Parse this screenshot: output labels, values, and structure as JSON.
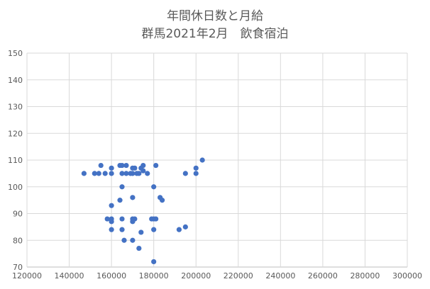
{
  "chart_data": {
    "type": "scatter",
    "title": [
      "年間休日数と月給",
      "群馬2021年2月　飲食宿泊"
    ],
    "xlim": [
      120000,
      300000
    ],
    "ylim": [
      70,
      150
    ],
    "x_ticks": [
      120000,
      140000,
      160000,
      180000,
      200000,
      220000,
      240000,
      260000,
      280000,
      300000
    ],
    "y_ticks": [
      70,
      80,
      90,
      100,
      110,
      120,
      130,
      140,
      150
    ],
    "grid": "both",
    "legend": "none",
    "marker_color": "#4472c4",
    "series": [
      {
        "points": [
          [
            147000,
            105
          ],
          [
            152000,
            105
          ],
          [
            154000,
            105
          ],
          [
            155000,
            108
          ],
          [
            157000,
            105
          ],
          [
            160000,
            107
          ],
          [
            160000,
            105
          ],
          [
            164000,
            108
          ],
          [
            165000,
            108
          ],
          [
            165000,
            105
          ],
          [
            167000,
            105
          ],
          [
            167000,
            108
          ],
          [
            169000,
            105
          ],
          [
            170000,
            107
          ],
          [
            170000,
            105
          ],
          [
            171000,
            107
          ],
          [
            172000,
            105
          ],
          [
            173000,
            105
          ],
          [
            174000,
            107
          ],
          [
            175000,
            106
          ],
          [
            175000,
            108
          ],
          [
            177000,
            105
          ],
          [
            181000,
            108
          ],
          [
            195000,
            105
          ],
          [
            200000,
            107
          ],
          [
            200000,
            105
          ],
          [
            203000,
            110
          ],
          [
            165000,
            100
          ],
          [
            164000,
            95
          ],
          [
            170000,
            96
          ],
          [
            180000,
            100
          ],
          [
            183000,
            96
          ],
          [
            184000,
            95
          ],
          [
            160000,
            93
          ],
          [
            158000,
            88
          ],
          [
            160000,
            88
          ],
          [
            160000,
            87
          ],
          [
            160000,
            84
          ],
          [
            165000,
            88
          ],
          [
            165000,
            84
          ],
          [
            166000,
            80
          ],
          [
            170000,
            88
          ],
          [
            170000,
            87
          ],
          [
            171000,
            88
          ],
          [
            170000,
            80
          ],
          [
            173000,
            77
          ],
          [
            174000,
            83
          ],
          [
            179000,
            88
          ],
          [
            180000,
            88
          ],
          [
            180000,
            84
          ],
          [
            181000,
            88
          ],
          [
            180000,
            72
          ],
          [
            192000,
            84
          ],
          [
            195000,
            85
          ]
        ]
      }
    ]
  }
}
